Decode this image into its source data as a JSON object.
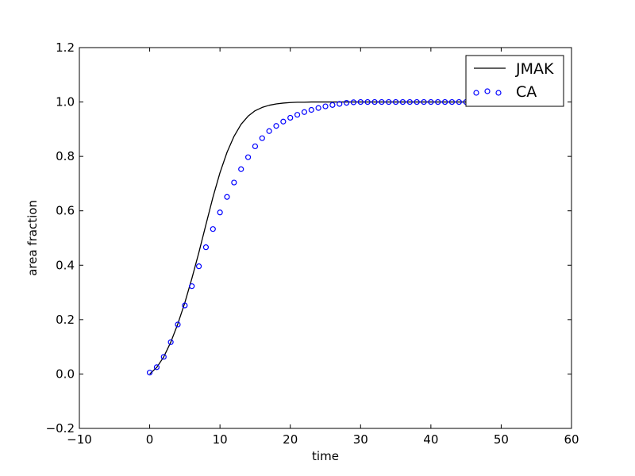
{
  "chart_data": {
    "type": "line",
    "title": "",
    "xlabel": "time",
    "ylabel": "area fraction",
    "xlim": [
      -10,
      60
    ],
    "ylim": [
      -0.2,
      1.2
    ],
    "xticks": [
      -10,
      0,
      10,
      20,
      30,
      40,
      50,
      60
    ],
    "xtick_labels": [
      "−10",
      "0",
      "10",
      "20",
      "30",
      "40",
      "50",
      "60"
    ],
    "yticks": [
      -0.2,
      0.0,
      0.2,
      0.4,
      0.6,
      0.8,
      1.0,
      1.2
    ],
    "ytick_labels": [
      "−0.2",
      "0.0",
      "0.2",
      "0.4",
      "0.6",
      "0.8",
      "1.0",
      "1.2"
    ],
    "grid": false,
    "legend_position": "top-right",
    "series": [
      {
        "name": "JMAK",
        "kind": "line",
        "color": "#000000",
        "x": [
          0,
          1,
          2,
          3,
          4,
          5,
          6,
          7,
          8,
          9,
          10,
          11,
          12,
          13,
          14,
          15,
          16,
          17,
          18,
          19,
          20,
          21,
          22,
          23,
          24,
          25,
          26,
          27,
          28,
          29,
          30,
          32,
          34,
          36,
          38,
          40,
          42,
          44,
          46,
          48,
          50
        ],
        "y": [
          0.0,
          0.024,
          0.063,
          0.117,
          0.184,
          0.262,
          0.351,
          0.447,
          0.549,
          0.65,
          0.74,
          0.815,
          0.874,
          0.918,
          0.948,
          0.968,
          0.98,
          0.988,
          0.993,
          0.996,
          0.998,
          0.999,
          0.999,
          1.0,
          1.0,
          1.0,
          1.0,
          1.0,
          1.0,
          1.0,
          1.0,
          1.0,
          1.0,
          1.0,
          1.0,
          1.0,
          1.0,
          1.0,
          1.0,
          1.0,
          1.0
        ]
      },
      {
        "name": "CA",
        "kind": "scatter",
        "color": "#0000ff",
        "x": [
          0,
          1,
          2,
          3,
          4,
          5,
          6,
          7,
          8,
          9,
          10,
          11,
          12,
          13,
          14,
          15,
          16,
          17,
          18,
          19,
          20,
          21,
          22,
          23,
          24,
          25,
          26,
          27,
          28,
          29,
          30,
          31,
          32,
          33,
          34,
          35,
          36,
          37,
          38,
          39,
          40,
          41,
          42,
          43,
          44,
          45,
          46,
          47,
          48,
          49,
          50
        ],
        "y": [
          0.005,
          0.025,
          0.063,
          0.117,
          0.182,
          0.252,
          0.323,
          0.396,
          0.466,
          0.533,
          0.594,
          0.651,
          0.704,
          0.753,
          0.797,
          0.837,
          0.867,
          0.893,
          0.912,
          0.928,
          0.942,
          0.953,
          0.963,
          0.971,
          0.978,
          0.984,
          0.989,
          0.993,
          0.997,
          0.999,
          1.0,
          1.0,
          1.0,
          1.0,
          1.0,
          1.0,
          1.0,
          1.0,
          1.0,
          1.0,
          1.0,
          1.0,
          1.0,
          1.0,
          1.0,
          1.0,
          1.0,
          1.0,
          1.0,
          1.0,
          1.0
        ]
      }
    ]
  }
}
